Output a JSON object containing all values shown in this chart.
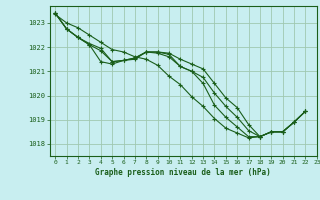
{
  "title": "Graphe pression niveau de la mer (hPa)",
  "bg_color": "#c8eef0",
  "grid_color_major": "#a0c8b0",
  "grid_color_minor": "#c0ddc8",
  "line_color": "#1a5e1a",
  "xlim": [
    -0.5,
    23
  ],
  "ylim": [
    1017.5,
    1023.7
  ],
  "yticks": [
    1018,
    1019,
    1020,
    1021,
    1022,
    1023
  ],
  "xticks": [
    0,
    1,
    2,
    3,
    4,
    5,
    6,
    7,
    8,
    9,
    10,
    11,
    12,
    13,
    14,
    15,
    16,
    17,
    18,
    19,
    20,
    21,
    22,
    23
  ],
  "lines": [
    [
      1023.4,
      1022.75,
      1022.4,
      1022.15,
      1021.95,
      1021.4,
      1021.45,
      1021.55,
      1021.8,
      1021.8,
      1021.75,
      1021.5,
      1021.3,
      1021.1,
      1020.5,
      1019.9,
      1019.5,
      1018.8,
      1018.3,
      1018.5,
      1018.5,
      1018.9,
      1019.35,
      null
    ],
    [
      1023.4,
      1022.75,
      1022.4,
      1022.1,
      1021.4,
      1021.3,
      1021.45,
      1021.5,
      1021.8,
      1021.8,
      1021.7,
      1021.2,
      1021.0,
      1020.5,
      1019.6,
      1019.1,
      1018.7,
      1018.3,
      1018.3,
      1018.5,
      1018.5,
      1018.9,
      1019.35,
      null
    ],
    [
      1023.4,
      1022.75,
      1022.4,
      1022.1,
      1021.85,
      1021.4,
      1021.45,
      1021.55,
      1021.8,
      1021.75,
      1021.6,
      1021.2,
      1021.0,
      1020.75,
      1020.1,
      1019.55,
      1019.1,
      1018.55,
      1018.3,
      1018.5,
      1018.5,
      1018.9,
      1019.35,
      null
    ],
    [
      1023.35,
      1023.0,
      1022.8,
      1022.5,
      1022.2,
      1021.9,
      1021.8,
      1021.6,
      1021.5,
      1021.25,
      1020.8,
      1020.45,
      1019.95,
      1019.55,
      1019.05,
      1018.65,
      1018.45,
      1018.25,
      1018.3,
      1018.5,
      1018.5,
      1018.9,
      1019.35,
      null
    ]
  ]
}
